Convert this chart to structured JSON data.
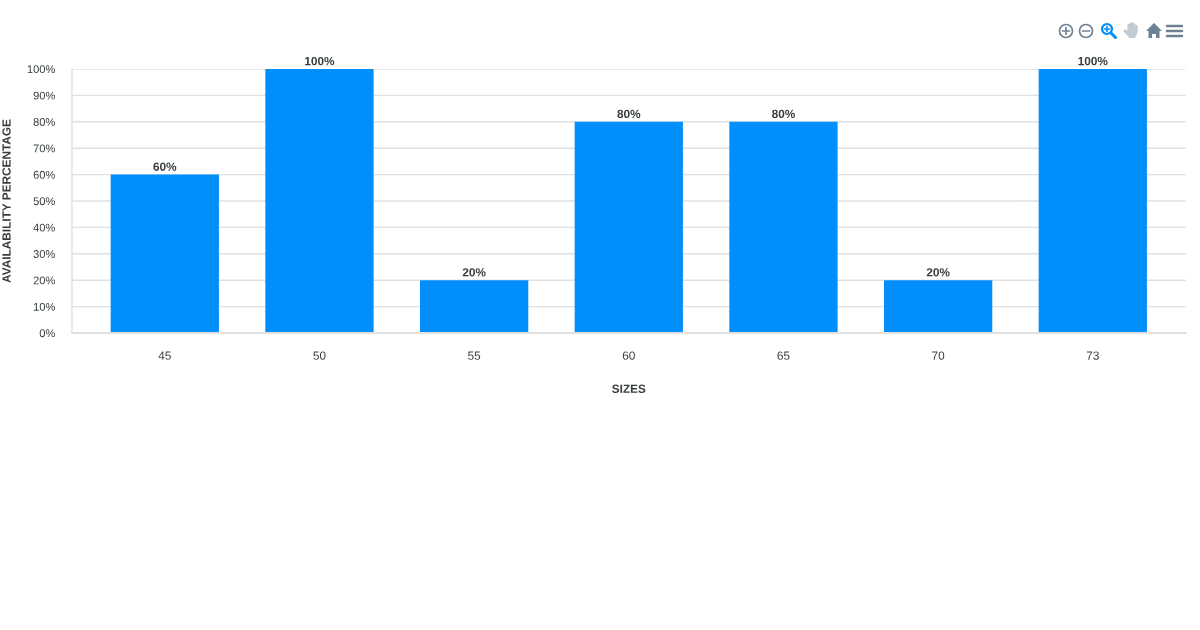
{
  "chart_data": {
    "type": "bar",
    "xlabel": "SIZES",
    "ylabel": "AVAILABILITY PERCENTAGE",
    "categories": [
      "45",
      "50",
      "55",
      "60",
      "65",
      "70",
      "73"
    ],
    "values": [
      60,
      100,
      20,
      80,
      80,
      20,
      100
    ],
    "color": "#008ffb",
    "value_labels": [
      "60%",
      "100%",
      "20%",
      "80%",
      "80%",
      "20%",
      "100%"
    ],
    "ylim": [
      0,
      100
    ],
    "yticks": [
      {
        "value": 0,
        "label": "0%"
      },
      {
        "value": 10,
        "label": "10%"
      },
      {
        "value": 20,
        "label": "20%"
      },
      {
        "value": 30,
        "label": "30%"
      },
      {
        "value": 40,
        "label": "40%"
      },
      {
        "value": 50,
        "label": "50%"
      },
      {
        "value": 60,
        "label": "60%"
      },
      {
        "value": 70,
        "label": "70%"
      },
      {
        "value": 80,
        "label": "80%"
      },
      {
        "value": 90,
        "label": "90%"
      },
      {
        "value": 100,
        "label": "100%"
      }
    ],
    "grid": "y"
  }
}
